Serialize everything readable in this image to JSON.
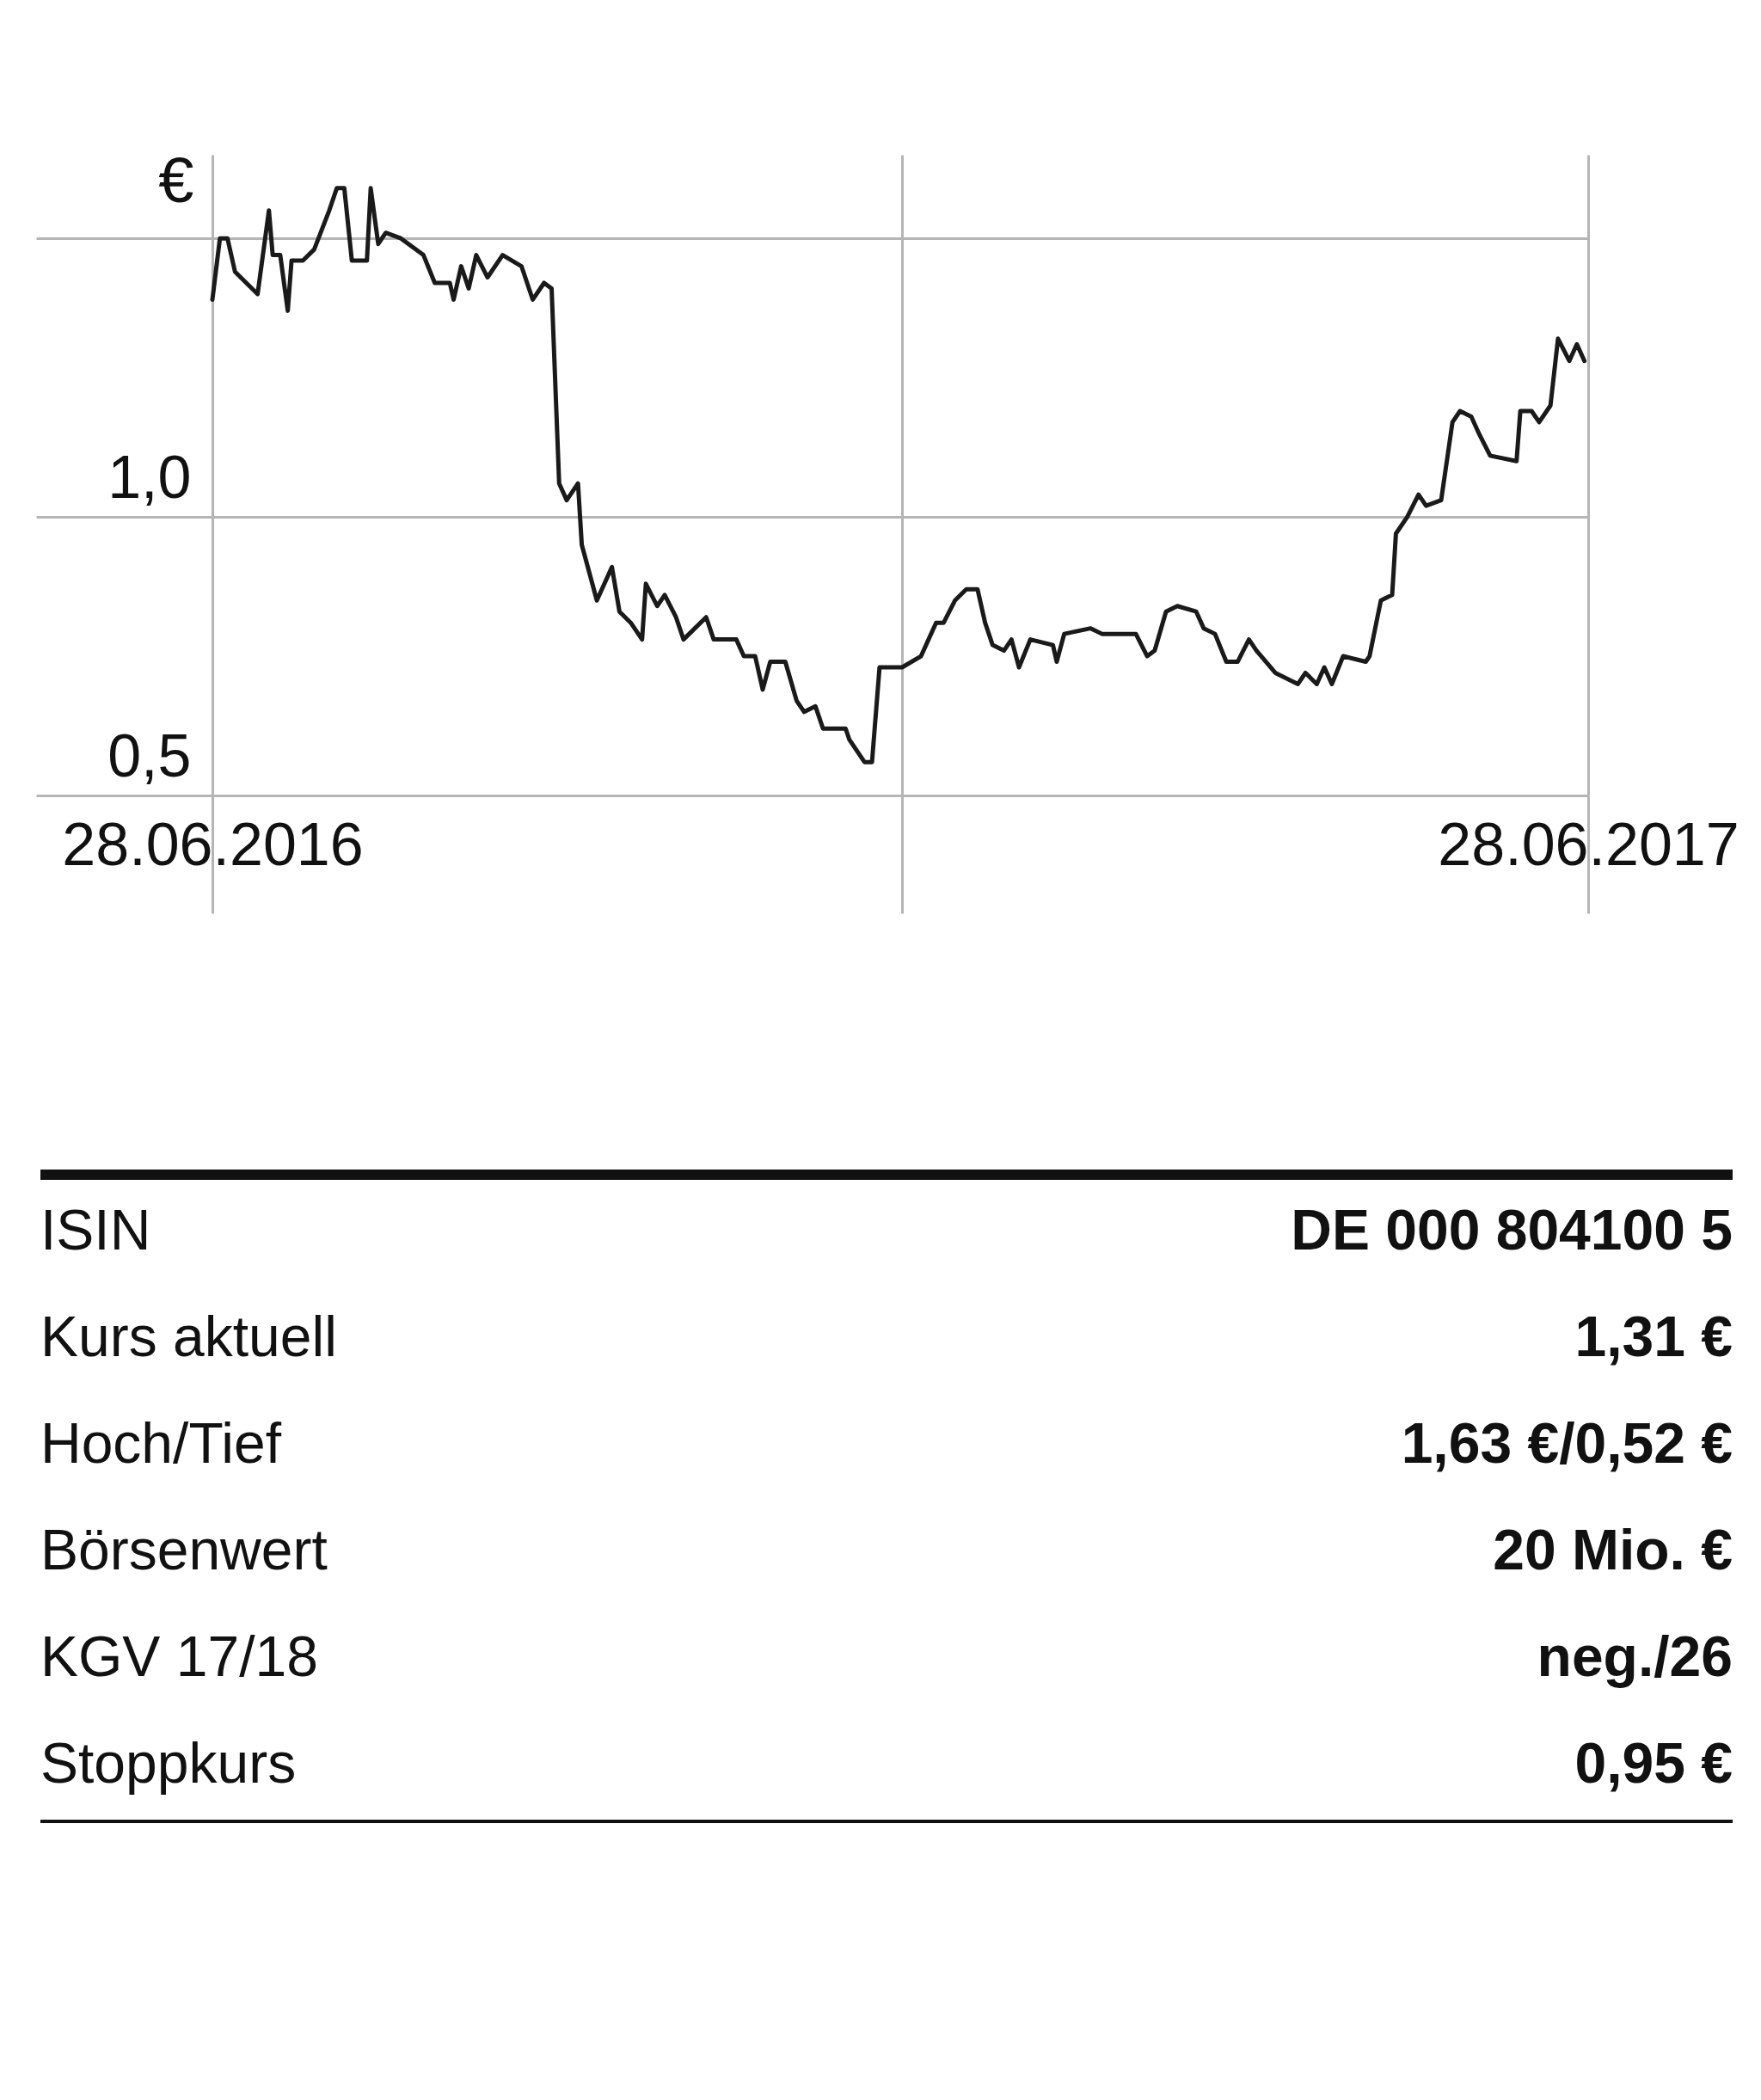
{
  "chart_data": [
    {
      "type": "line",
      "ylabel": "€",
      "x": [
        "2016-06-28",
        "2016-06-30",
        "2016-07-02",
        "2016-07-04",
        "2016-07-07",
        "2016-07-10",
        "2016-07-13",
        "2016-07-14",
        "2016-07-16",
        "2016-07-18",
        "2016-07-19",
        "2016-07-22",
        "2016-07-25",
        "2016-07-29",
        "2016-07-31",
        "2016-08-02",
        "2016-08-04",
        "2016-08-08",
        "2016-08-09",
        "2016-08-11",
        "2016-08-13",
        "2016-08-17",
        "2016-08-23",
        "2016-08-26",
        "2016-08-30",
        "2016-08-31",
        "2016-09-02",
        "2016-09-04",
        "2016-09-06",
        "2016-09-09",
        "2016-09-13",
        "2016-09-18",
        "2016-09-21",
        "2016-09-24",
        "2016-09-26",
        "2016-09-28",
        "2016-09-30",
        "2016-10-03",
        "2016-10-04",
        "2016-10-08",
        "2016-10-12",
        "2016-10-14",
        "2016-10-17",
        "2016-10-20",
        "2016-10-21",
        "2016-10-24",
        "2016-10-26",
        "2016-10-29",
        "2016-10-31",
        "2016-11-03",
        "2016-11-06",
        "2016-11-08",
        "2016-11-14",
        "2016-11-16",
        "2016-11-19",
        "2016-11-21",
        "2016-11-23",
        "2016-11-27",
        "2016-11-30",
        "2016-12-02",
        "2016-12-05",
        "2016-12-07",
        "2016-12-13",
        "2016-12-14",
        "2016-12-18",
        "2016-12-20",
        "2016-12-22",
        "2016-12-28",
        "2017-01-02",
        "2017-01-04",
        "2017-01-06",
        "2017-01-08",
        "2017-01-11",
        "2017-01-14",
        "2017-01-17",
        "2017-01-19",
        "2017-01-21",
        "2017-01-24",
        "2017-01-26",
        "2017-01-28",
        "2017-01-31",
        "2017-02-06",
        "2017-02-07",
        "2017-02-09",
        "2017-02-16",
        "2017-02-19",
        "2017-02-23",
        "2017-02-28",
        "2017-03-03",
        "2017-03-05",
        "2017-03-08",
        "2017-03-11",
        "2017-03-16",
        "2017-03-18",
        "2017-03-21",
        "2017-03-24",
        "2017-03-27",
        "2017-03-30",
        "2017-04-01",
        "2017-04-06",
        "2017-04-12",
        "2017-04-14",
        "2017-04-17",
        "2017-04-19",
        "2017-04-21",
        "2017-04-24",
        "2017-04-30",
        "2017-05-01",
        "2017-05-04",
        "2017-05-07",
        "2017-05-08",
        "2017-05-11",
        "2017-05-14",
        "2017-05-16",
        "2017-05-20",
        "2017-05-23",
        "2017-05-25",
        "2017-05-28",
        "2017-05-30",
        "2017-06-02",
        "2017-06-09",
        "2017-06-10",
        "2017-06-13",
        "2017-06-15",
        "2017-06-18",
        "2017-06-20",
        "2017-06-23",
        "2017-06-25",
        "2017-06-27"
      ],
      "series": [
        {
          "color": "#1a1a1a",
          "values": [
            1.39,
            1.5,
            1.5,
            1.44,
            1.42,
            1.4,
            1.55,
            1.47,
            1.47,
            1.37,
            1.46,
            1.46,
            1.48,
            1.55,
            1.59,
            1.59,
            1.46,
            1.46,
            1.59,
            1.49,
            1.51,
            1.5,
            1.47,
            1.42,
            1.42,
            1.39,
            1.45,
            1.41,
            1.47,
            1.43,
            1.47,
            1.45,
            1.39,
            1.42,
            1.41,
            1.06,
            1.03,
            1.06,
            0.95,
            0.85,
            0.91,
            0.83,
            0.81,
            0.78,
            0.88,
            0.84,
            0.86,
            0.82,
            0.78,
            0.8,
            0.82,
            0.78,
            0.78,
            0.75,
            0.75,
            0.69,
            0.74,
            0.74,
            0.67,
            0.65,
            0.66,
            0.62,
            0.62,
            0.6,
            0.56,
            0.56,
            0.73,
            0.73,
            0.75,
            0.78,
            0.81,
            0.81,
            0.85,
            0.87,
            0.87,
            0.81,
            0.77,
            0.76,
            0.78,
            0.73,
            0.78,
            0.77,
            0.74,
            0.79,
            0.8,
            0.79,
            0.79,
            0.79,
            0.75,
            0.76,
            0.83,
            0.84,
            0.83,
            0.8,
            0.79,
            0.74,
            0.74,
            0.78,
            0.76,
            0.72,
            0.7,
            0.72,
            0.7,
            0.73,
            0.7,
            0.75,
            0.74,
            0.75,
            0.85,
            0.86,
            0.97,
            1.0,
            1.04,
            1.02,
            1.03,
            1.17,
            1.19,
            1.18,
            1.15,
            1.11,
            1.1,
            1.19,
            1.19,
            1.17,
            1.2,
            1.32,
            1.28,
            1.31,
            1.28
          ]
        }
      ],
      "xlim": [
        "2016-06-28",
        "2017-06-28"
      ],
      "xticks": [
        {
          "value": "2016-06-28",
          "label": "28.06.2016"
        },
        {
          "value": "2016-12-28",
          "label": null
        },
        {
          "value": "2017-06-28",
          "label": "28.06.2017"
        }
      ],
      "ylim": [
        0.5,
        1.65
      ],
      "yticks": [
        {
          "value": 0.5,
          "label": "0,5"
        },
        {
          "value": 1,
          "label": "1,0"
        },
        {
          "value": 1.5,
          "label": null
        }
      ],
      "grid": true,
      "line_style": "solid"
    },
    {
      "type": "other",
      "annotations": [
        "ISIN",
        "DE 000 804100 5",
        "Kurs aktuell",
        "1,31 €",
        "Hoch/Tief",
        "1,63 €/0,52 €",
        "Börsenwert",
        "20 Mio. €",
        "KGV 17/18",
        "neg./26",
        "Stoppkurs",
        "0,95 €"
      ]
    }
  ]
}
